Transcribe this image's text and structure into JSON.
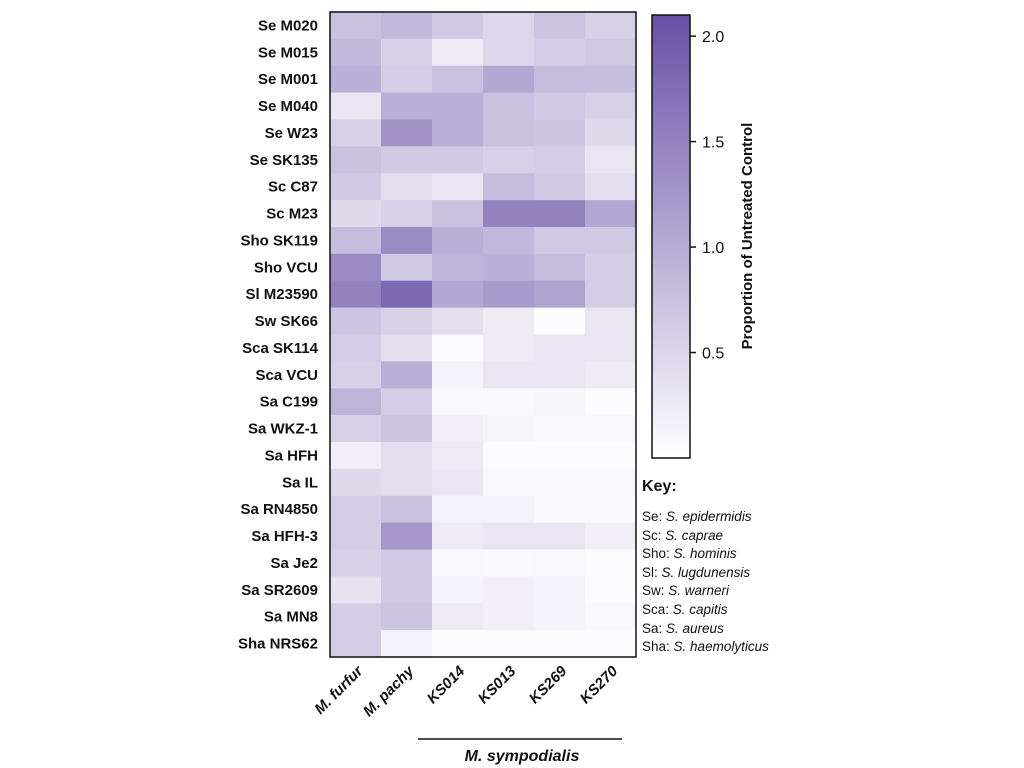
{
  "chart_data": {
    "type": "heatmap",
    "rows": [
      "Se M020",
      "Se M015",
      "Se M001",
      "Se M040",
      "Se W23",
      "Se SK135",
      "Sc C87",
      "Sc M23",
      "Sho SK119",
      "Sho VCU",
      "Sl M23590",
      "Sw SK66",
      "Sca SK114",
      "Sca VCU",
      "Sa C199",
      "Sa WKZ-1",
      "Sa HFH",
      "Sa IL",
      "Sa RN4850",
      "Sa HFH-3",
      "Sa Je2",
      "Sa SR2609",
      "Sa MN8",
      "Sha NRS62"
    ],
    "columns": [
      "M. furfur",
      "M. pachy",
      "KS014",
      "KS013",
      "KS269",
      "KS270"
    ],
    "column_group": {
      "label": "M. sympodialis",
      "columns": [
        "KS014",
        "KS013",
        "KS269",
        "KS270"
      ]
    },
    "values": [
      [
        0.75,
        0.85,
        0.65,
        0.5,
        0.7,
        0.55
      ],
      [
        0.85,
        0.55,
        0.25,
        0.5,
        0.6,
        0.65
      ],
      [
        0.95,
        0.6,
        0.75,
        1.05,
        0.8,
        0.8
      ],
      [
        0.3,
        0.95,
        0.95,
        0.75,
        0.65,
        0.55
      ],
      [
        0.55,
        1.3,
        0.95,
        0.75,
        0.7,
        0.45
      ],
      [
        0.75,
        0.65,
        0.65,
        0.55,
        0.6,
        0.3
      ],
      [
        0.65,
        0.4,
        0.3,
        0.8,
        0.65,
        0.4
      ],
      [
        0.45,
        0.55,
        0.75,
        1.5,
        1.5,
        1.05
      ],
      [
        0.8,
        1.4,
        0.95,
        0.85,
        0.65,
        0.65
      ],
      [
        1.4,
        0.65,
        0.9,
        0.95,
        0.8,
        0.6
      ],
      [
        1.5,
        1.8,
        1.05,
        1.2,
        1.1,
        0.6
      ],
      [
        0.7,
        0.55,
        0.4,
        0.25,
        0.05,
        0.3
      ],
      [
        0.6,
        0.4,
        0.05,
        0.25,
        0.3,
        0.3
      ],
      [
        0.55,
        0.95,
        0.15,
        0.3,
        0.3,
        0.25
      ],
      [
        0.9,
        0.6,
        0.1,
        0.1,
        0.12,
        0.05
      ],
      [
        0.55,
        0.7,
        0.2,
        0.12,
        0.1,
        0.1
      ],
      [
        0.2,
        0.4,
        0.25,
        0.05,
        0.05,
        0.05
      ],
      [
        0.45,
        0.4,
        0.3,
        0.08,
        0.08,
        0.1
      ],
      [
        0.6,
        0.75,
        0.15,
        0.15,
        0.08,
        0.08
      ],
      [
        0.6,
        1.25,
        0.25,
        0.3,
        0.3,
        0.2
      ],
      [
        0.55,
        0.65,
        0.1,
        0.08,
        0.1,
        0.05
      ],
      [
        0.35,
        0.65,
        0.15,
        0.2,
        0.15,
        0.05
      ],
      [
        0.6,
        0.7,
        0.25,
        0.2,
        0.15,
        0.1
      ],
      [
        0.6,
        0.15,
        0.05,
        0.05,
        0.05,
        0.05
      ]
    ],
    "colorbar": {
      "label": "Proportion of Untreated Control",
      "range": [
        0,
        2.1
      ],
      "ticks": [
        0.5,
        1.0,
        1.5,
        2.0
      ],
      "tick_labels": [
        "0.5",
        "1.0",
        "1.5",
        "2.0"
      ],
      "color_low": "#ffffff",
      "color_high": "#6751a6"
    },
    "legend_placement": "right"
  },
  "key": {
    "title": "Key:",
    "entries": [
      {
        "abbr": "Se:",
        "species": "S. epidermidis"
      },
      {
        "abbr": "Sc:",
        "species": "S. caprae"
      },
      {
        "abbr": "Sho:",
        "species": "S. hominis"
      },
      {
        "abbr": "Sl:",
        "species": "S. lugdunensis"
      },
      {
        "abbr": "Sw:",
        "species": "S. warneri"
      },
      {
        "abbr": "Sca:",
        "species": "S. capitis"
      },
      {
        "abbr": "Sa:",
        "species": "S. aureus"
      },
      {
        "abbr": "Sha:",
        "species": "S. haemolyticus"
      }
    ]
  }
}
